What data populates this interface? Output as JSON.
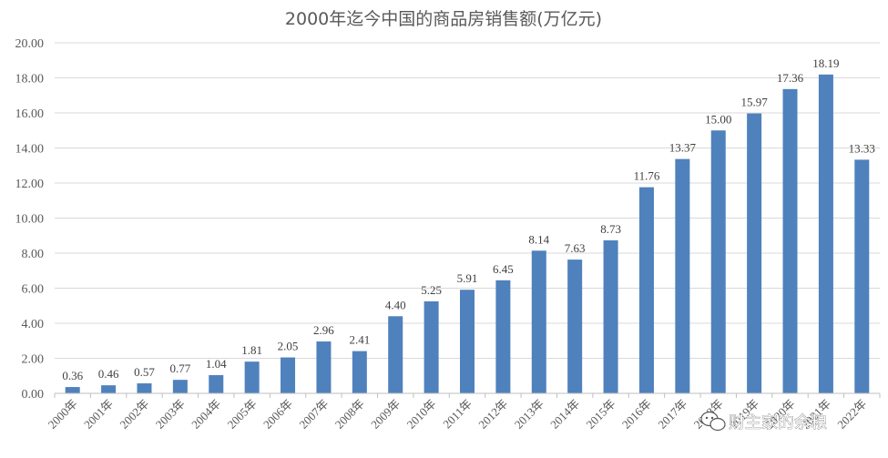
{
  "chart_data": {
    "type": "bar",
    "title": "2000年迄今中国的商品房销售额(万亿元)",
    "xlabel": "",
    "ylabel": "",
    "ylim": [
      0,
      20
    ],
    "yticks": [
      "0.00",
      "2.00",
      "4.00",
      "6.00",
      "8.00",
      "10.00",
      "12.00",
      "14.00",
      "16.00",
      "18.00",
      "20.00"
    ],
    "grid": true,
    "legend": "none",
    "bar_color": "#4f81bd",
    "categories": [
      "2000年",
      "2001年",
      "2002年",
      "2003年",
      "2004年",
      "2005年",
      "2006年",
      "2007年",
      "2008年",
      "2009年",
      "2010年",
      "2011年",
      "2012年",
      "2013年",
      "2014年",
      "2015年",
      "2016年",
      "2017年",
      "2018年",
      "2019年",
      "2020年",
      "2021年",
      "2022年"
    ],
    "values": [
      0.36,
      0.46,
      0.57,
      0.77,
      1.04,
      1.81,
      2.05,
      2.96,
      2.41,
      4.4,
      5.25,
      5.91,
      6.45,
      8.14,
      7.63,
      8.73,
      11.76,
      13.37,
      15.0,
      15.97,
      17.36,
      18.19,
      13.33
    ],
    "data_labels": [
      "0.36",
      "0.46",
      "0.57",
      "0.77",
      "1.04",
      "1.81",
      "2.05",
      "2.96",
      "2.41",
      "4.40",
      "5.25",
      "5.91",
      "6.45",
      "8.14",
      "7.63",
      "8.73",
      "11.76",
      "13.37",
      "15.00",
      "15.97",
      "17.36",
      "18.19",
      "13.33"
    ]
  },
  "watermark": {
    "text": "财主家的余粮",
    "icon": "wechat-icon"
  }
}
